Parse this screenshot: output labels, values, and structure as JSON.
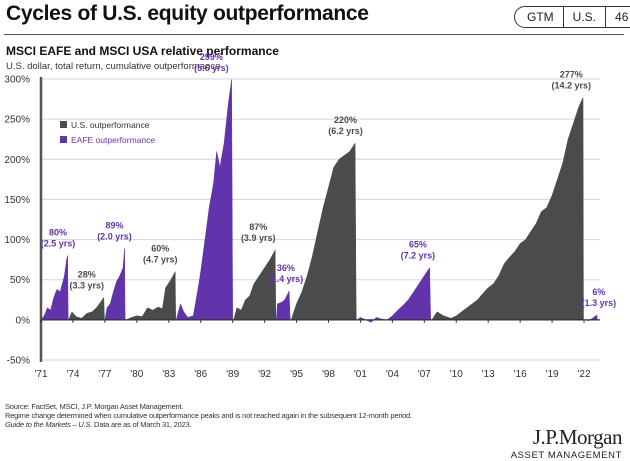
{
  "header": {
    "title": "Cycles of U.S. equity outperformance",
    "badge": [
      "GTM",
      "U.S.",
      "46"
    ]
  },
  "chart_data": {
    "type": "area",
    "title": "MSCI EAFE and MSCI USA relative performance",
    "subtitle": "U.S. dollar, total return, cumulative outperformance",
    "xlabel": "",
    "ylabel": "",
    "ylim": [
      -50,
      300
    ],
    "xlim": [
      1971,
      2023.5
    ],
    "yticks": [
      -50,
      0,
      50,
      100,
      150,
      200,
      250,
      300
    ],
    "ytick_labels": [
      "-50%",
      "0%",
      "50%",
      "100%",
      "150%",
      "200%",
      "250%",
      "300%"
    ],
    "xticks": [
      1971,
      1974,
      1977,
      1980,
      1983,
      1986,
      1989,
      1992,
      1995,
      1998,
      2001,
      2004,
      2007,
      2010,
      2013,
      2016,
      2019,
      2022
    ],
    "xtick_labels": [
      "'71",
      "'74",
      "'77",
      "'80",
      "'83",
      "'86",
      "'89",
      "'92",
      "'95",
      "'98",
      "'01",
      "'04",
      "'07",
      "'10",
      "'13",
      "'16",
      "'19",
      "'22"
    ],
    "grid": true,
    "legend": {
      "placement": "top-left",
      "entries": [
        {
          "name": "U.S. outperformance",
          "color": "#4a4b4d"
        },
        {
          "name": "EAFE outperformance",
          "color": "#6234ac"
        }
      ]
    },
    "series": [
      {
        "name": "EAFE outperformance",
        "color": "#6234ac",
        "label": "80%",
        "sublabel": "(2.5 yrs)",
        "points": [
          [
            1971.0,
            0
          ],
          [
            1971.3,
            5
          ],
          [
            1971.6,
            15
          ],
          [
            1971.9,
            12
          ],
          [
            1972.2,
            28
          ],
          [
            1972.5,
            38
          ],
          [
            1972.8,
            35
          ],
          [
            1973.0,
            45
          ],
          [
            1973.2,
            55
          ],
          [
            1973.4,
            75
          ],
          [
            1973.5,
            80
          ],
          [
            1973.55,
            0
          ]
        ]
      },
      {
        "name": "U.S. outperformance",
        "color": "#4a4b4d",
        "label": "28%",
        "sublabel": "(3.3 yrs)",
        "points": [
          [
            1973.6,
            0
          ],
          [
            1973.9,
            10
          ],
          [
            1974.3,
            4
          ],
          [
            1974.8,
            2
          ],
          [
            1975.3,
            8
          ],
          [
            1975.8,
            10
          ],
          [
            1976.2,
            15
          ],
          [
            1976.6,
            22
          ],
          [
            1976.9,
            28
          ],
          [
            1976.95,
            0
          ]
        ]
      },
      {
        "name": "EAFE outperformance",
        "color": "#6234ac",
        "label": "89%",
        "sublabel": "(2.0 yrs)",
        "points": [
          [
            1977.0,
            0
          ],
          [
            1977.2,
            15
          ],
          [
            1977.5,
            20
          ],
          [
            1977.8,
            35
          ],
          [
            1978.1,
            48
          ],
          [
            1978.4,
            55
          ],
          [
            1978.7,
            65
          ],
          [
            1978.85,
            89
          ],
          [
            1978.9,
            0
          ]
        ]
      },
      {
        "name": "U.S. outperformance",
        "color": "#4a4b4d",
        "label": "60%",
        "sublabel": "(4.7 yrs)",
        "points": [
          [
            1979.0,
            0
          ],
          [
            1979.5,
            3
          ],
          [
            1980.0,
            5
          ],
          [
            1980.5,
            4
          ],
          [
            1981.0,
            15
          ],
          [
            1981.5,
            12
          ],
          [
            1982.0,
            16
          ],
          [
            1982.4,
            14
          ],
          [
            1982.7,
            40
          ],
          [
            1983.2,
            50
          ],
          [
            1983.6,
            60
          ],
          [
            1983.65,
            0
          ]
        ]
      },
      {
        "name": "EAFE outperformance",
        "color": "#6234ac",
        "label": "299%",
        "sublabel": "(5.6 yrs)",
        "points": [
          [
            1983.7,
            0
          ],
          [
            1984.1,
            20
          ],
          [
            1984.4,
            10
          ],
          [
            1984.8,
            3
          ],
          [
            1985.3,
            5
          ],
          [
            1985.7,
            35
          ],
          [
            1986.0,
            60
          ],
          [
            1986.4,
            100
          ],
          [
            1986.8,
            140
          ],
          [
            1987.2,
            170
          ],
          [
            1987.5,
            210
          ],
          [
            1987.8,
            190
          ],
          [
            1988.2,
            220
          ],
          [
            1988.6,
            270
          ],
          [
            1988.9,
            299
          ],
          [
            1989.0,
            0
          ]
        ]
      },
      {
        "name": "U.S. outperformance",
        "color": "#4a4b4d",
        "label": "87%",
        "sublabel": "(3.9 yrs)",
        "points": [
          [
            1989.1,
            0
          ],
          [
            1989.4,
            15
          ],
          [
            1989.8,
            12
          ],
          [
            1990.2,
            25
          ],
          [
            1990.6,
            30
          ],
          [
            1991.0,
            45
          ],
          [
            1991.5,
            55
          ],
          [
            1992.0,
            65
          ],
          [
            1992.5,
            75
          ],
          [
            1993.0,
            87
          ],
          [
            1993.05,
            0
          ]
        ]
      },
      {
        "name": "EAFE outperformance",
        "color": "#6234ac",
        "label": "36%",
        "sublabel": "(1.4 yrs)",
        "points": [
          [
            1993.1,
            0
          ],
          [
            1993.2,
            20
          ],
          [
            1993.6,
            22
          ],
          [
            1993.9,
            25
          ],
          [
            1994.3,
            36
          ],
          [
            1994.4,
            0
          ]
        ]
      },
      {
        "name": "U.S. outperformance",
        "color": "#4a4b4d",
        "label": "220%",
        "sublabel": "(6.2 yrs)",
        "points": [
          [
            1994.5,
            0
          ],
          [
            1995.0,
            20
          ],
          [
            1995.5,
            35
          ],
          [
            1996.0,
            55
          ],
          [
            1996.5,
            80
          ],
          [
            1997.0,
            110
          ],
          [
            1997.5,
            140
          ],
          [
            1998.0,
            165
          ],
          [
            1998.5,
            190
          ],
          [
            1999.0,
            200
          ],
          [
            1999.5,
            205
          ],
          [
            2000.0,
            210
          ],
          [
            2000.5,
            220
          ],
          [
            2000.6,
            0
          ]
        ]
      },
      {
        "name": "EAFE outperformance",
        "color": "#6234ac",
        "label": "65%",
        "sublabel": "(7.2 yrs)",
        "points": [
          [
            2000.7,
            0
          ],
          [
            2001.0,
            3
          ],
          [
            2001.5,
            0
          ],
          [
            2002.0,
            -3
          ],
          [
            2002.5,
            3
          ],
          [
            2003.0,
            1
          ],
          [
            2003.5,
            0
          ],
          [
            2004.0,
            5
          ],
          [
            2004.5,
            12
          ],
          [
            2005.0,
            18
          ],
          [
            2005.5,
            25
          ],
          [
            2006.0,
            35
          ],
          [
            2006.5,
            45
          ],
          [
            2007.0,
            55
          ],
          [
            2007.5,
            65
          ],
          [
            2007.6,
            0
          ]
        ]
      },
      {
        "name": "U.S. outperformance",
        "color": "#4a4b4d",
        "label": "277%",
        "sublabel": "(14.2 yrs)",
        "points": [
          [
            2007.7,
            0
          ],
          [
            2008.2,
            10
          ],
          [
            2008.8,
            5
          ],
          [
            2009.5,
            2
          ],
          [
            2010.0,
            5
          ],
          [
            2010.5,
            10
          ],
          [
            2011.0,
            15
          ],
          [
            2011.5,
            20
          ],
          [
            2012.0,
            25
          ],
          [
            2012.5,
            33
          ],
          [
            2013.0,
            40
          ],
          [
            2013.5,
            45
          ],
          [
            2014.0,
            55
          ],
          [
            2014.5,
            70
          ],
          [
            2015.0,
            78
          ],
          [
            2015.5,
            85
          ],
          [
            2016.0,
            95
          ],
          [
            2016.5,
            100
          ],
          [
            2017.0,
            110
          ],
          [
            2017.5,
            120
          ],
          [
            2018.0,
            135
          ],
          [
            2018.5,
            140
          ],
          [
            2019.0,
            155
          ],
          [
            2019.5,
            175
          ],
          [
            2020.0,
            195
          ],
          [
            2020.5,
            225
          ],
          [
            2021.0,
            245
          ],
          [
            2021.5,
            265
          ],
          [
            2021.9,
            277
          ],
          [
            2021.95,
            0
          ]
        ]
      },
      {
        "name": "EAFE outperformance",
        "color": "#6234ac",
        "label": "6%",
        "sublabel": "(1.3 yrs)",
        "points": [
          [
            2022.0,
            0
          ],
          [
            2022.4,
            -1
          ],
          [
            2022.8,
            2
          ],
          [
            2023.2,
            6
          ],
          [
            2023.25,
            0
          ]
        ]
      }
    ],
    "annotations": [
      {
        "text": "80%",
        "sub": "(2.5 yrs)",
        "x": 1972.6,
        "y": 80,
        "color": "#6234ac"
      },
      {
        "text": "28%",
        "sub": "(3.3 yrs)",
        "x": 1975.3,
        "y": 28,
        "color": "#4a4b4d"
      },
      {
        "text": "89%",
        "sub": "(2.0 yrs)",
        "x": 1977.9,
        "y": 89,
        "color": "#6234ac"
      },
      {
        "text": "60%",
        "sub": "(4.7 yrs)",
        "x": 1982.2,
        "y": 60,
        "color": "#4a4b4d"
      },
      {
        "text": "299%",
        "sub": "(5.6 yrs)",
        "x": 1987.0,
        "y": 299,
        "color": "#6234ac"
      },
      {
        "text": "87%",
        "sub": "(3.9 yrs)",
        "x": 1991.4,
        "y": 87,
        "color": "#4a4b4d"
      },
      {
        "text": "36%",
        "sub": "(1.4 yrs)",
        "x": 1994.0,
        "y": 36,
        "color": "#6234ac"
      },
      {
        "text": "220%",
        "sub": "(6.2 yrs)",
        "x": 1999.6,
        "y": 220,
        "color": "#4a4b4d"
      },
      {
        "text": "65%",
        "sub": "(7.2 yrs)",
        "x": 2006.4,
        "y": 65,
        "color": "#6234ac"
      },
      {
        "text": "277%",
        "sub": "(14.2 yrs)",
        "x": 2020.8,
        "y": 277,
        "color": "#4a4b4d"
      },
      {
        "text": "6%",
        "sub": "(1.3 yrs)",
        "x": 2023.4,
        "y": 6,
        "color": "#6234ac"
      }
    ]
  },
  "footnotes": {
    "source": "Source: FactSet, MSCI, J.P. Morgan Asset Management.",
    "method": "Regime change determined when cumulative outperformance peaks and is not reached again in the subsequent 12-month period.",
    "guide_italic": "Guide to the Markets – U.S.",
    "as_of": " Data are as of March 31, 2023."
  },
  "logo": {
    "name": "J.P.Morgan",
    "sub": "ASSET MANAGEMENT"
  }
}
